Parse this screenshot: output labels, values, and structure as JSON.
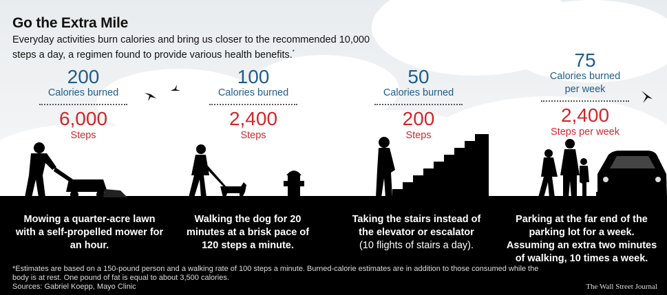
{
  "title": "Go the Extra Mile",
  "subtitle": "Everyday activities burn calories and bring us closer to the recommended 10,000 steps a day, a regimen found to provide various health benefits.",
  "subtitle_mark": "*",
  "colors": {
    "calorie_blue": "#1f5c8b",
    "steps_red": "#d0262a",
    "ground": "#000000"
  },
  "activities": [
    {
      "calories": "200",
      "calories_label": "Calories burned",
      "steps": "6,000",
      "steps_label": "Steps",
      "desc_bold": "Mowing a quarter-acre lawn with a self-propelled mower for an hour.",
      "desc_plain": ""
    },
    {
      "calories": "100",
      "calories_label": "Calories burned",
      "steps": "2,400",
      "steps_label": "Steps",
      "desc_bold": "Walking the dog for 20 minutes at a brisk pace of 120 steps a minute.",
      "desc_plain": ""
    },
    {
      "calories": "50",
      "calories_label": "Calories burned",
      "steps": "200",
      "steps_label": "Steps",
      "desc_bold": "Taking the stairs instead of the elevator or escalator",
      "desc_plain": "(10 flights of stairs a day)."
    },
    {
      "calories": "75",
      "calories_label": "Calories burned per week",
      "steps": "2,400",
      "steps_label": "Steps per week",
      "desc_bold": "Parking at the far end of the parking lot for a week. Assuming an extra two minutes of walking, 10 times a week.",
      "desc_plain": ""
    }
  ],
  "footnote": "*Estimates are based on a 150-pound person and a walking rate of 100 steps a minute. Burned-calorie estimates are in addition to those consumed while the body is at rest. One pound of fat is equal to about 3,500 calories.",
  "sources": "Sources: Gabriel Koepp, Mayo Clinic",
  "credit": "The Wall Street Journal",
  "icons": [
    "bird-icon",
    "lawn-mower-person-icon",
    "dog-walker-icon",
    "fire-hydrant-icon",
    "stairs-climber-icon",
    "walking-family-icon",
    "car-icon"
  ]
}
